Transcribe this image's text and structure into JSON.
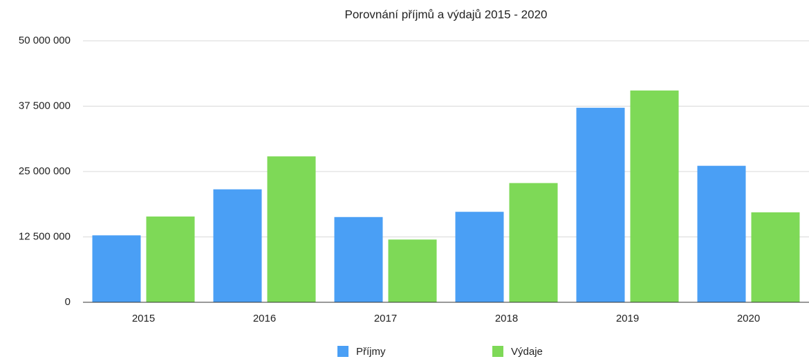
{
  "chart_data": {
    "type": "bar",
    "title": "Porovnání příjmů a výdajů 2015 - 2020",
    "categories": [
      "2015",
      "2016",
      "2017",
      "2018",
      "2019",
      "2020"
    ],
    "series": [
      {
        "name": "Příjmy",
        "color": "#4a9ff5",
        "values": [
          12800000,
          21600000,
          16300000,
          17300000,
          37200000,
          26100000
        ]
      },
      {
        "name": "Výdaje",
        "color": "#7ed957",
        "values": [
          16400000,
          27900000,
          12000000,
          22800000,
          40500000,
          17200000
        ]
      }
    ],
    "ylim": [
      0,
      50000000
    ],
    "yticks": [
      0,
      {
        "value": 12500000,
        "label": "12 500 000"
      },
      {
        "value": 25000000,
        "label": "25 000 000"
      },
      {
        "value": 37500000,
        "label": "37 500 000"
      },
      {
        "value": 50000000,
        "label": "50 000 000"
      }
    ],
    "grid": true,
    "legend": "bottom"
  }
}
